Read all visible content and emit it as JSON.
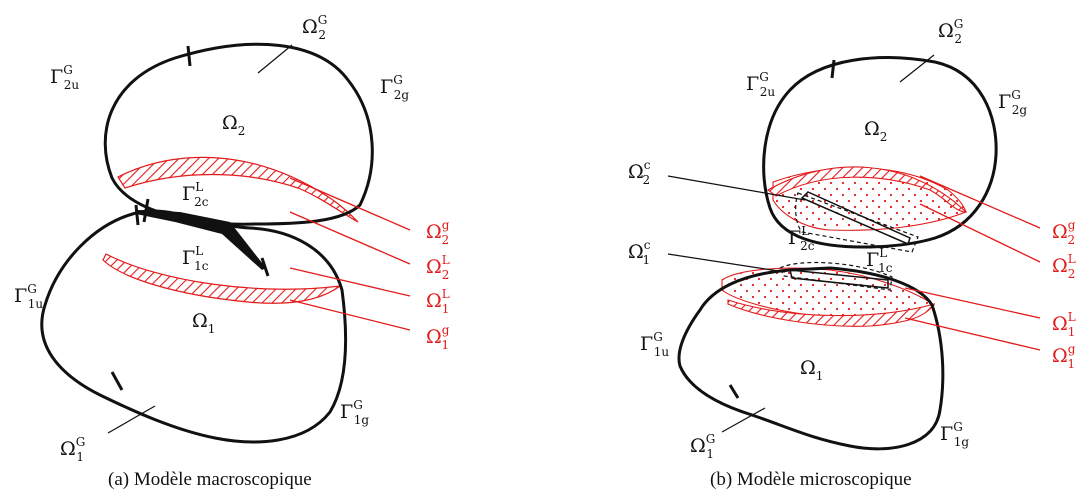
{
  "colors": {
    "outline": "#111111",
    "accent": "#e31b1b"
  },
  "panel_a": {
    "caption": "(a) Modèle macroscopique",
    "labels": {
      "omega2": {
        "main": "Ω",
        "sub": "2",
        "sup": ""
      },
      "omega1": {
        "main": "Ω",
        "sub": "1",
        "sup": ""
      },
      "omega2G": {
        "main": "Ω",
        "sub": "2",
        "sup": "G"
      },
      "omega1G": {
        "main": "Ω",
        "sub": "1",
        "sup": "G"
      },
      "gamma2u": {
        "main": "Γ",
        "sub": "2u",
        "sup": "G"
      },
      "gamma2g": {
        "main": "Γ",
        "sub": "2g",
        "sup": "G"
      },
      "gamma1u": {
        "main": "Γ",
        "sub": "1u",
        "sup": "G"
      },
      "gamma1g": {
        "main": "Γ",
        "sub": "1g",
        "sup": "G"
      },
      "gamma2c": {
        "main": "Γ",
        "sub": "2c",
        "sup": "L"
      },
      "gamma1c": {
        "main": "Γ",
        "sub": "1c",
        "sup": "L"
      },
      "omega2g_red": {
        "main": "Ω",
        "sub": "2",
        "sup": "g"
      },
      "omega2L_red": {
        "main": "Ω",
        "sub": "2",
        "sup": "L"
      },
      "omega1L_red": {
        "main": "Ω",
        "sub": "1",
        "sup": "L"
      },
      "omega1g_red": {
        "main": "Ω",
        "sub": "1",
        "sup": "g"
      }
    }
  },
  "panel_b": {
    "caption": "(b) Modèle microscopique",
    "labels": {
      "omega2": {
        "main": "Ω",
        "sub": "2",
        "sup": ""
      },
      "omega1": {
        "main": "Ω",
        "sub": "1",
        "sup": ""
      },
      "omega2G": {
        "main": "Ω",
        "sub": "2",
        "sup": "G"
      },
      "omega1G": {
        "main": "Ω",
        "sub": "1",
        "sup": "G"
      },
      "gamma2u": {
        "main": "Γ",
        "sub": "2u",
        "sup": "G"
      },
      "gamma2g": {
        "main": "Γ",
        "sub": "2g",
        "sup": "G"
      },
      "gamma1u": {
        "main": "Γ",
        "sub": "1u",
        "sup": "G"
      },
      "gamma1g": {
        "main": "Γ",
        "sub": "1g",
        "sup": "G"
      },
      "gamma2c": {
        "main": "Γ",
        "sub": "2c",
        "sup": "L"
      },
      "gamma1c": {
        "main": "Γ",
        "sub": "1c",
        "sup": "L"
      },
      "omega2c": {
        "main": "Ω",
        "sub": "2",
        "sup": "c"
      },
      "omega1c": {
        "main": "Ω",
        "sub": "1",
        "sup": "c"
      },
      "omega2g_red": {
        "main": "Ω",
        "sub": "2",
        "sup": "g"
      },
      "omega2L_red": {
        "main": "Ω",
        "sub": "2",
        "sup": "L"
      },
      "omega1L_red": {
        "main": "Ω",
        "sub": "1",
        "sup": "L"
      },
      "omega1g_red": {
        "main": "Ω",
        "sub": "1",
        "sup": "g"
      }
    }
  }
}
